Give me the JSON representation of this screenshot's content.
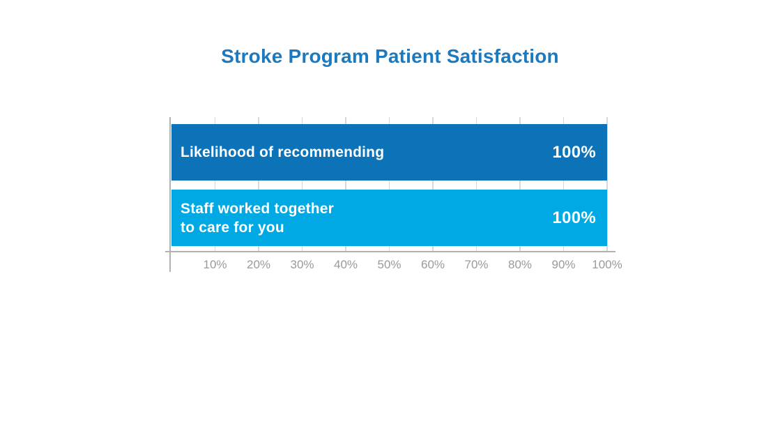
{
  "title": "Stroke Program Patient Satisfaction",
  "colors": {
    "title": "#1b79c0",
    "bar_dark": "#0d73b9",
    "bar_light": "#00a9e3",
    "bar_text": "#ffffff",
    "axis": "#b2b2b2",
    "gridline": "#d8d8d8",
    "tick_text": "#9a9a9a",
    "background": "#ffffff"
  },
  "chart_data": {
    "type": "bar",
    "orientation": "horizontal",
    "title": "Stroke Program Patient Satisfaction",
    "xlabel": "",
    "ylabel": "",
    "xlim": [
      0,
      100
    ],
    "grid": true,
    "legend": false,
    "x_tick_labels": [
      "10%",
      "20%",
      "30%",
      "40%",
      "50%",
      "60%",
      "70%",
      "80%",
      "90%",
      "100%"
    ],
    "categories": [
      "Likelihood of recommending",
      "Staff worked together to care for you"
    ],
    "values": [
      100,
      100
    ],
    "bars": [
      {
        "label_lines": [
          "Likelihood of recommending"
        ],
        "value": 100,
        "value_label": "100%",
        "color_key": "bar_dark"
      },
      {
        "label_lines": [
          "Staff worked together",
          "to care for you"
        ],
        "value": 100,
        "value_label": "100%",
        "color_key": "bar_light"
      }
    ]
  }
}
